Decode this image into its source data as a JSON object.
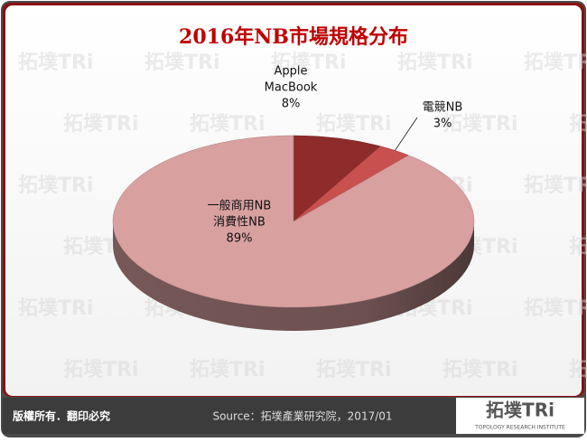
{
  "chart_data": {
    "type": "pie3d",
    "title": "2016年NB市場規格分布",
    "categories": [
      [
        "Apple",
        "MacBook"
      ],
      [
        "電競NB"
      ],
      [
        "一般商用NB",
        "消費性NB"
      ]
    ],
    "values": [
      8,
      3,
      89
    ],
    "value_labels": [
      "8%",
      "3%",
      "89%"
    ],
    "colors": [
      "#8e2b2b",
      "#c8504e",
      "#d9a0a0"
    ]
  },
  "footer": {
    "rights": "版權所有．翻印必究",
    "source": "Source：拓墣產業研究院，2017/01",
    "logo": "拓墣TRi",
    "logo_sub": "TOPOLOGY RESEARCH INSTITUTE"
  }
}
